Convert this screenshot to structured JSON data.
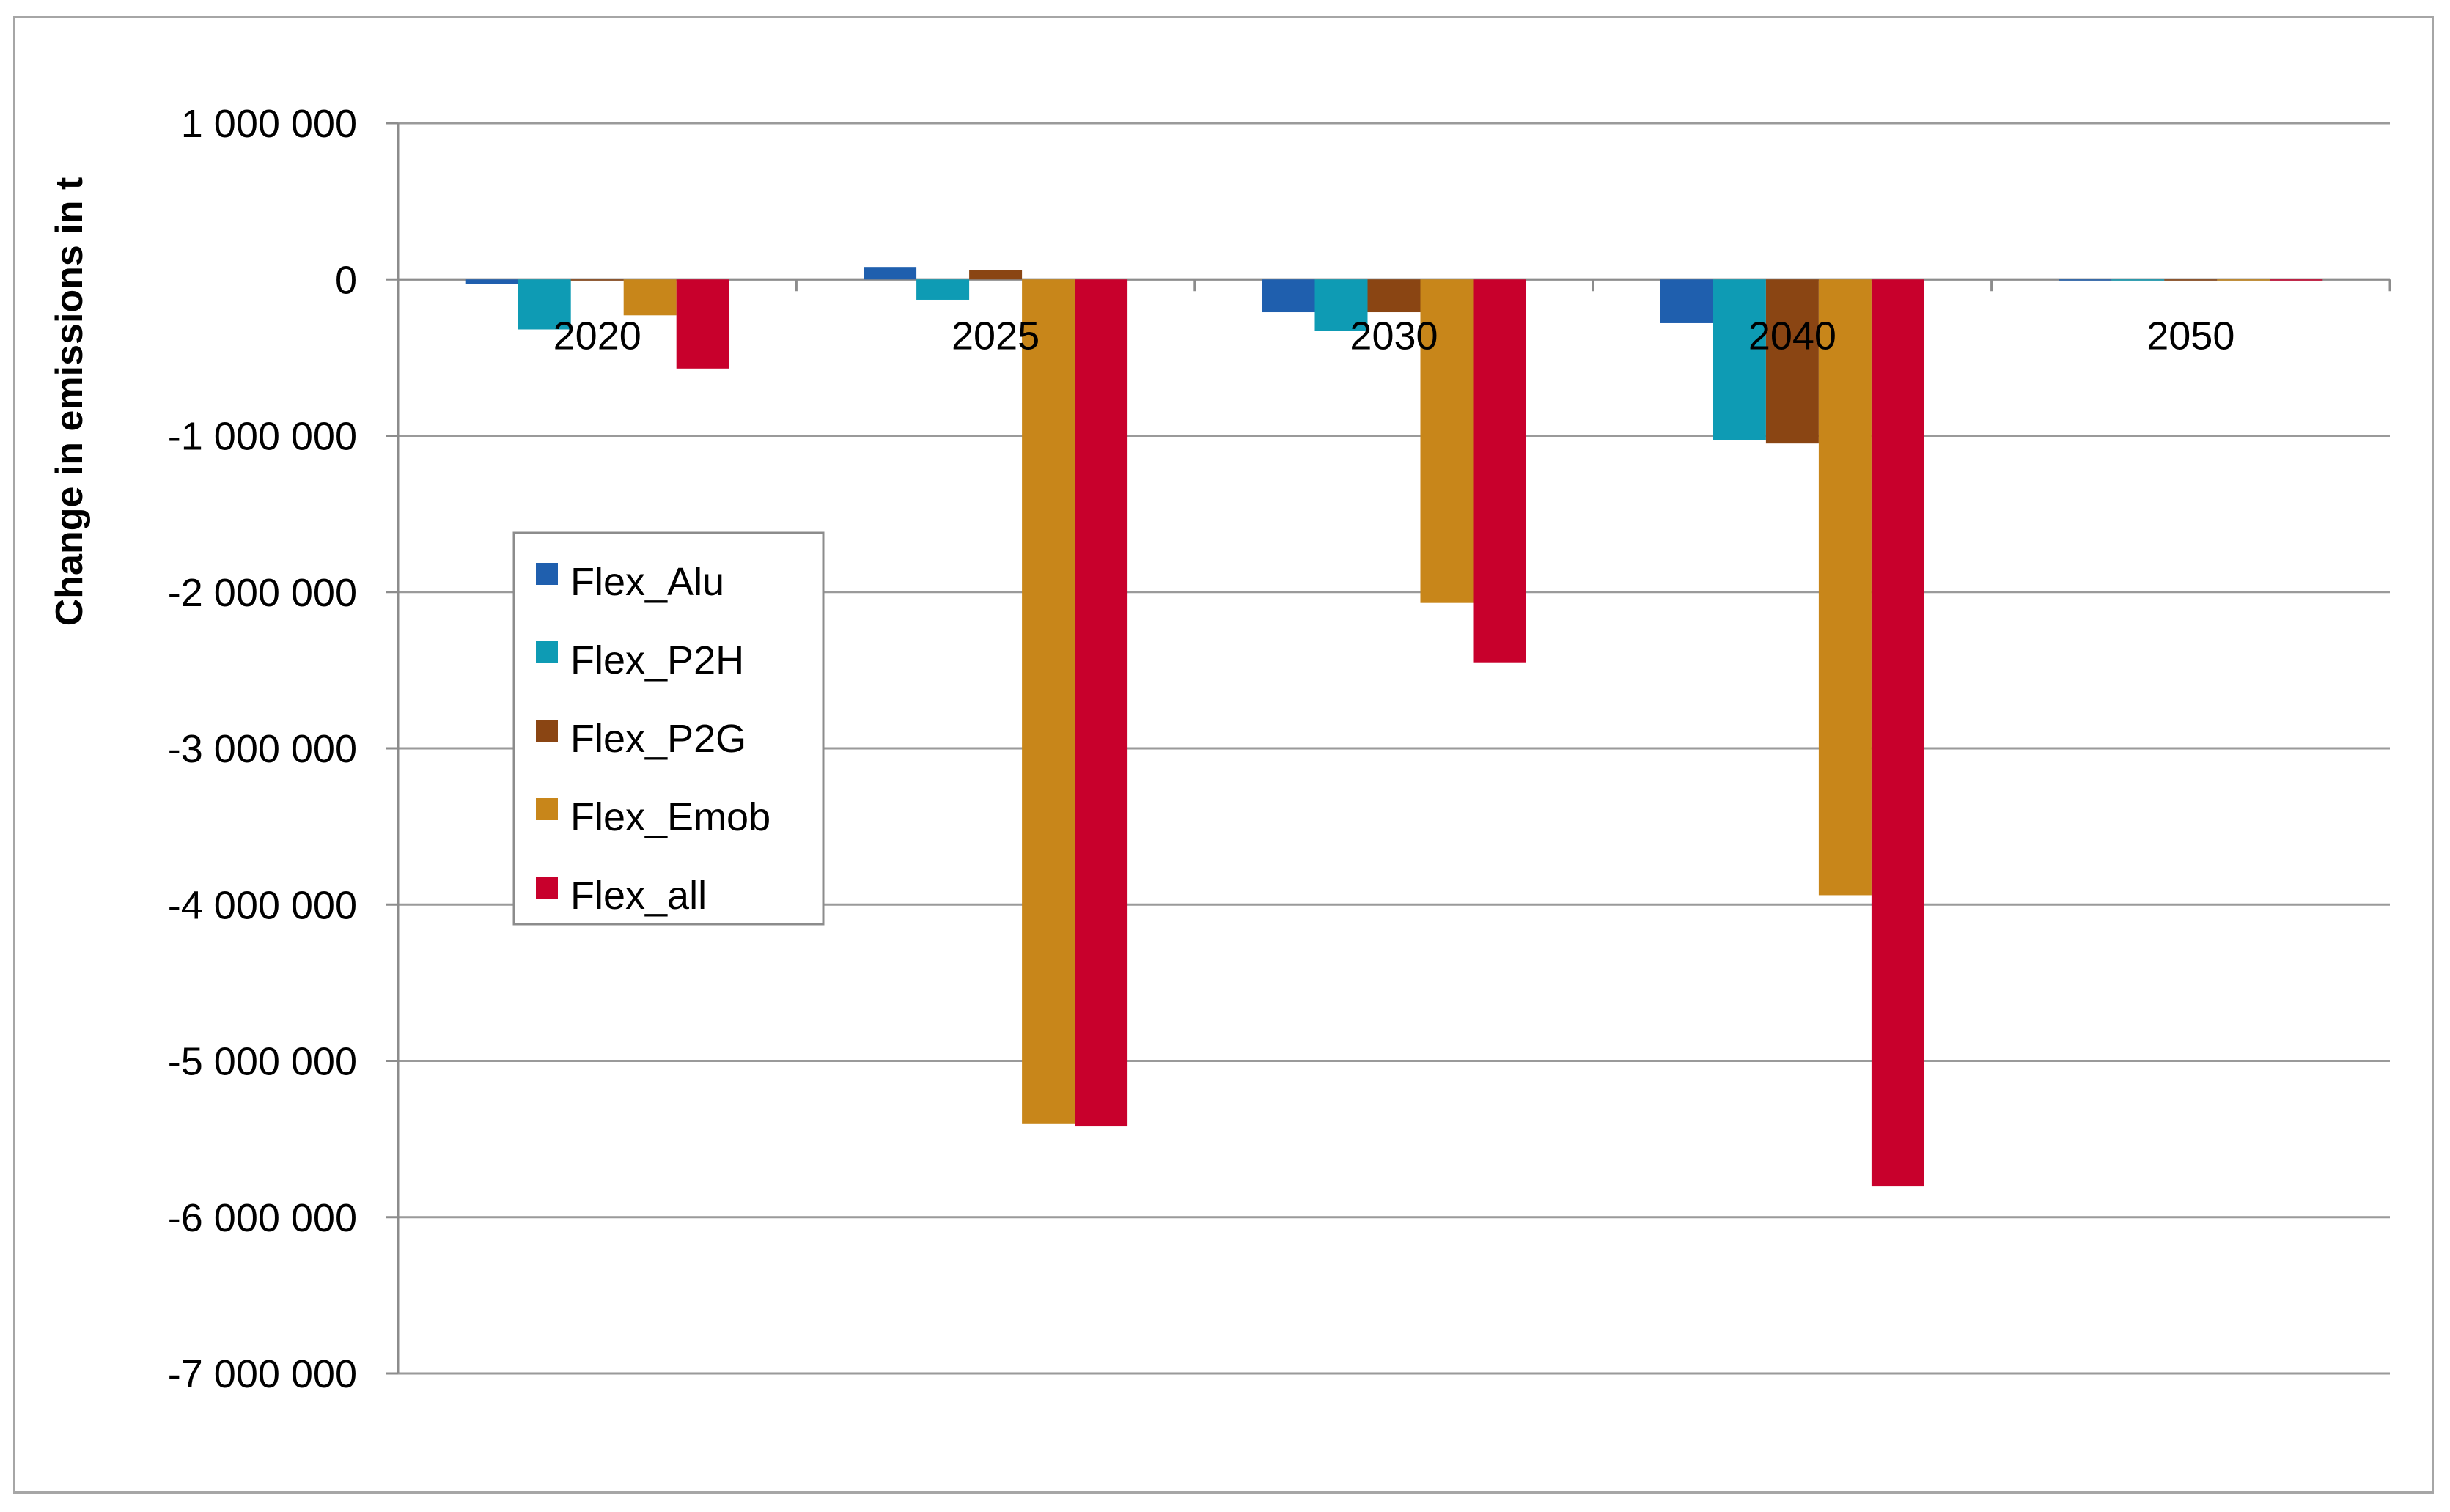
{
  "chart_data": {
    "type": "bar",
    "title": "",
    "xlabel": "",
    "ylabel": "Change in emissions in t",
    "categories": [
      "2020",
      "2025",
      "2030",
      "2040",
      "2050"
    ],
    "ylim": [
      -7000000,
      1000000
    ],
    "yticks": [
      1000000,
      0,
      -1000000,
      -2000000,
      -3000000,
      -4000000,
      -5000000,
      -6000000,
      -7000000
    ],
    "ytick_labels": [
      "1 000 000",
      "0",
      "-1 000 000",
      "-2 000 000",
      "-3 000 000",
      "-4 000 000",
      "-5 000 000",
      "-6 000 000",
      "-7 000 000"
    ],
    "grid": true,
    "legend_position": "left-middle",
    "series": [
      {
        "name": "Flex_Alu",
        "color": "#1f5fae",
        "values": [
          -30000,
          80000,
          -210000,
          -280000,
          -5000
        ]
      },
      {
        "name": "Flex_P2H",
        "color": "#0e9bb4",
        "values": [
          -320000,
          -130000,
          -330000,
          -1030000,
          -5000
        ]
      },
      {
        "name": "Flex_P2G",
        "color": "#8a4513",
        "values": [
          -5000,
          60000,
          -210000,
          -1050000,
          -5000
        ]
      },
      {
        "name": "Flex_Emob",
        "color": "#c8861a",
        "values": [
          -230000,
          -5400000,
          -2070000,
          -3940000,
          -5000
        ]
      },
      {
        "name": "Flex_all",
        "color": "#c8002c",
        "values": [
          -570000,
          -5420000,
          -2450000,
          -5800000,
          -5000
        ]
      }
    ]
  }
}
